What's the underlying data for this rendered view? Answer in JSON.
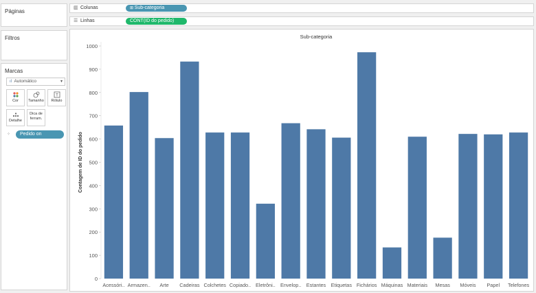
{
  "panels": {
    "pages": "Páginas",
    "filters": "Filtros",
    "marks": "Marcas"
  },
  "marks": {
    "type": "Automático",
    "buttons": {
      "color": "Cor",
      "size": "Tamanho",
      "label": "Rótulo",
      "detail": "Detalhe",
      "tooltip_line1": "Dica de",
      "tooltip_line2": "ferram."
    },
    "field_pill": "Pedido on"
  },
  "shelves": {
    "columns_label": "Colunas",
    "columns_pill": "Sub-categoria",
    "rows_label": "Linhas",
    "rows_pill": "CONT(ID do pedido)"
  },
  "colors": {
    "bar": "#4e79a7",
    "pill_dimension": "#4996b2",
    "pill_measure": "#1fb86b"
  },
  "chart_data": {
    "type": "bar",
    "title": "Sub-categoria",
    "ylabel": "Contagem de ID do pedido",
    "xlabel": "",
    "ylim": [
      0,
      1000
    ],
    "yticks": [
      0,
      100,
      200,
      300,
      400,
      500,
      600,
      700,
      800,
      900,
      1000
    ],
    "grid": false,
    "categories": [
      "Acessóri..",
      "Armazen..",
      "Arte",
      "Cadeiras",
      "Colchetes",
      "Copiado..",
      "Eletrôni..",
      "Envelop..",
      "Estantes",
      "Etiquetas",
      "Fichários",
      "Máquinas",
      "Materiais",
      "Mesas",
      "Móveis",
      "Papel",
      "Telefones"
    ],
    "values": [
      658,
      802,
      604,
      933,
      628,
      628,
      322,
      668,
      642,
      606,
      973,
      134,
      610,
      176,
      622,
      620,
      628
    ]
  }
}
